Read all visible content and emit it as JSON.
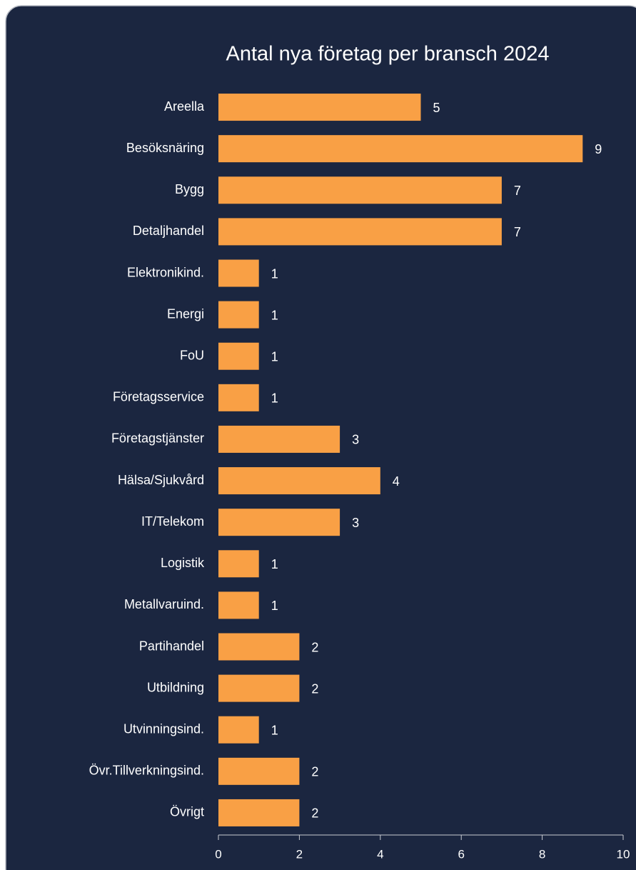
{
  "chart_data": {
    "type": "bar",
    "orientation": "horizontal",
    "title": "Antal nya företag per bransch 2024",
    "categories": [
      "Areella",
      "Besöksnäring",
      "Bygg",
      "Detaljhandel",
      "Elektronikind.",
      "Energi",
      "FoU",
      "Företagsservice",
      "Företagstjänster",
      "Hälsa/Sjukvård",
      "IT/Telekom",
      "Logistik",
      "Metallvaruind.",
      "Partihandel",
      "Utbildning",
      "Utvinningsind.",
      "Övr.Tillverkningsind.",
      "Övrigt"
    ],
    "values": [
      5,
      9,
      7,
      7,
      1,
      1,
      1,
      1,
      3,
      4,
      3,
      1,
      1,
      2,
      2,
      1,
      2,
      2
    ],
    "color": "#f9a045",
    "xlim": [
      0,
      10
    ],
    "xticks": [
      0,
      2,
      4,
      6,
      8,
      10
    ]
  }
}
